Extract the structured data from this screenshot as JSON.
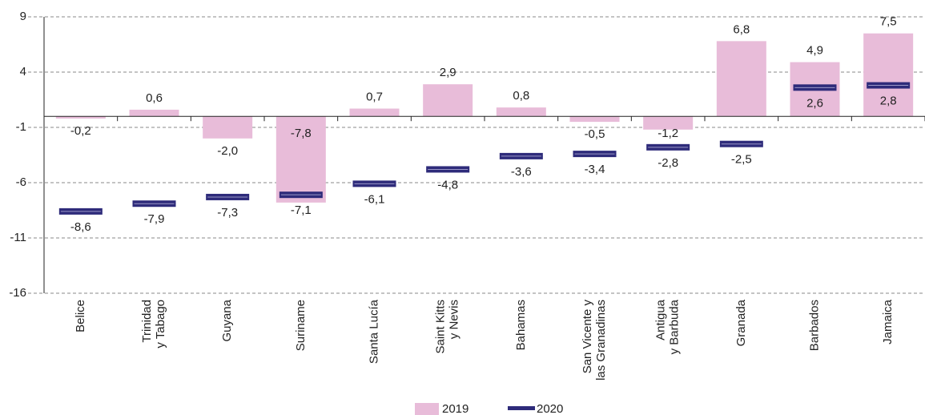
{
  "chart_data": {
    "type": "bar",
    "categories": [
      "Belice",
      "Trinidad\ny Tabago",
      "Guyana",
      "Suriname",
      "Santa Lucía",
      "Saint Kitts\ny Nevis",
      "Bahamas",
      "San Vicente y\nlas Granadinas",
      "Antigua\ny Barbuda",
      "Granada",
      "Barbados",
      "Jamaica"
    ],
    "series": [
      {
        "name": "2019",
        "color": "#e8bcd9",
        "values": [
          -0.2,
          0.6,
          -2.0,
          -7.8,
          0.7,
          2.9,
          0.8,
          -0.5,
          -1.2,
          6.8,
          4.9,
          7.5
        ],
        "value_labels": [
          "-0,2",
          "0,6",
          "-2,0",
          "-7,8",
          "0,7",
          "2,9",
          "0,8",
          "-0,5",
          "-1,2",
          "6,8",
          "4,9",
          "7,5"
        ]
      },
      {
        "name": "2020",
        "color": "#2e2b7a",
        "values": [
          -8.6,
          -7.9,
          -7.3,
          -7.1,
          -6.1,
          -4.8,
          -3.6,
          -3.4,
          -2.8,
          -2.5,
          2.6,
          2.8
        ],
        "value_labels": [
          "-8,6",
          "-7,9",
          "-7,3",
          "-7,1",
          "-6,1",
          "-4,8",
          "-3,6",
          "-3,4",
          "-2,8",
          "-2,5",
          "2,6",
          "2,8"
        ]
      }
    ],
    "ylim": [
      -16,
      9
    ],
    "yticks": [
      9,
      4,
      -1,
      -6,
      -11,
      -16
    ],
    "grid": true
  }
}
